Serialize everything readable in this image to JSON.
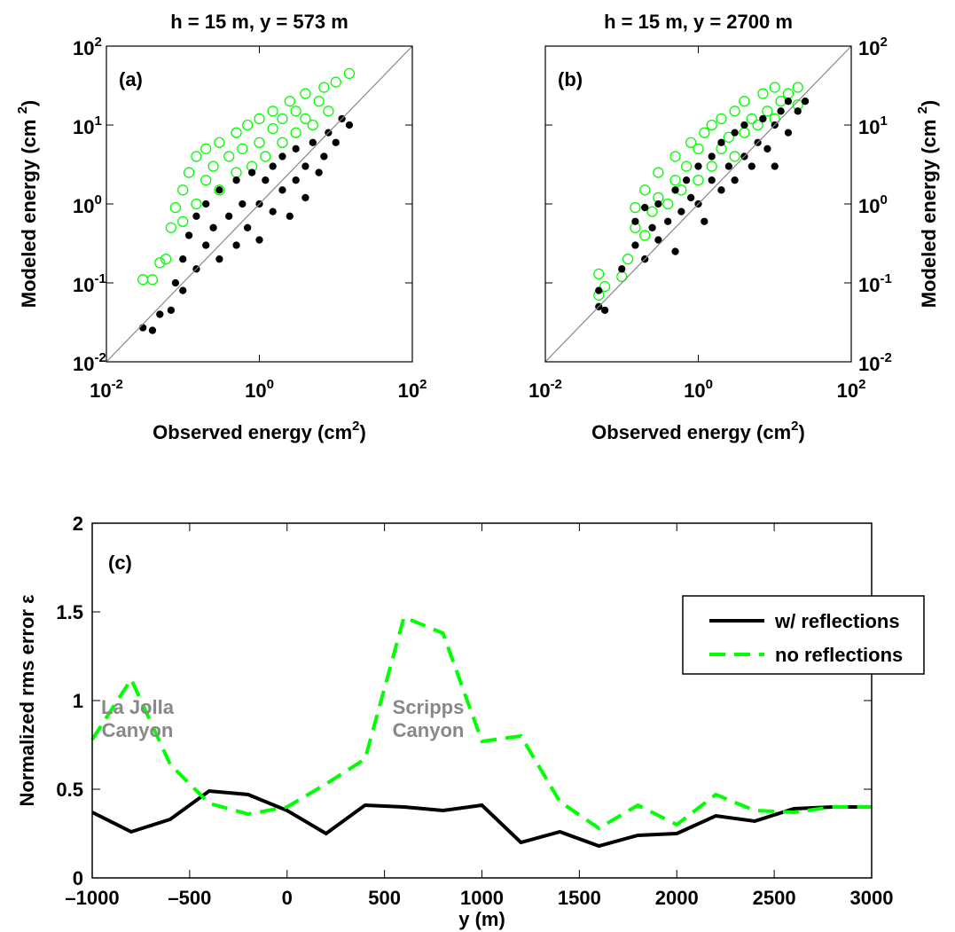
{
  "chart_data": [
    {
      "type": "scatter",
      "title": "h = 15 m, y = 573 m",
      "annotation": "(a)",
      "log_scale": true,
      "yaxis_side": "left",
      "xlabel": [
        "Observed energy (cm",
        "2",
        ")"
      ],
      "ylabel": [
        "Modeled energy (cm ",
        "2",
        ")"
      ],
      "xlim": [
        0.01,
        100
      ],
      "ylim": [
        0.01,
        100
      ],
      "xticks": [
        {
          "value": 0.01,
          "base": "10",
          "exponent": "-2"
        },
        {
          "value": 1,
          "base": "10",
          "exponent": "0"
        },
        {
          "value": 100,
          "base": "10",
          "exponent": "2"
        }
      ],
      "yticks": [
        {
          "value": 0.01,
          "base": "10",
          "exponent": "-2"
        },
        {
          "value": 0.1,
          "base": "10",
          "exponent": "-1"
        },
        {
          "value": 1,
          "base": "10",
          "exponent": "0"
        },
        {
          "value": 10,
          "base": "10",
          "exponent": "1"
        },
        {
          "value": 100,
          "base": "10",
          "exponent": "2"
        }
      ],
      "series": [
        {
          "color": "#00ff00",
          "marker": "open-circle",
          "x": [
            0.03,
            0.04,
            0.05,
            0.06,
            0.07,
            0.08,
            0.1,
            0.1,
            0.12,
            0.15,
            0.15,
            0.2,
            0.2,
            0.25,
            0.3,
            0.3,
            0.4,
            0.5,
            0.5,
            0.6,
            0.7,
            0.8,
            1,
            1,
            1.2,
            1.5,
            1.5,
            2,
            2,
            2.5,
            3,
            3,
            4,
            4,
            5,
            6,
            7,
            8,
            10,
            15
          ],
          "y": [
            0.11,
            0.11,
            0.18,
            0.2,
            0.5,
            0.9,
            0.6,
            1.5,
            2.5,
            1.0,
            4,
            2,
            5,
            3,
            1.5,
            6,
            4,
            2.5,
            8,
            5,
            10,
            3,
            6,
            12,
            4,
            9,
            15,
            6,
            12,
            20,
            8,
            15,
            12,
            25,
            10,
            20,
            30,
            15,
            35,
            45
          ]
        },
        {
          "color": "#000000",
          "marker": "dot",
          "x": [
            0.03,
            0.04,
            0.05,
            0.07,
            0.08,
            0.1,
            0.1,
            0.12,
            0.15,
            0.15,
            0.2,
            0.2,
            0.25,
            0.3,
            0.3,
            0.4,
            0.5,
            0.5,
            0.6,
            0.7,
            0.8,
            1,
            1,
            1.2,
            1.5,
            1.5,
            2,
            2,
            2.5,
            3,
            3,
            4,
            4,
            5,
            6,
            7,
            8,
            10,
            12,
            15
          ],
          "y": [
            0.027,
            0.025,
            0.04,
            0.045,
            0.1,
            0.2,
            0.08,
            0.4,
            0.15,
            0.7,
            0.3,
            1.0,
            0.5,
            0.2,
            1.5,
            0.7,
            0.3,
            2,
            1,
            0.5,
            2.5,
            1,
            0.35,
            2,
            0.8,
            3,
            1.5,
            4,
            0.7,
            2,
            5,
            3,
            1.2,
            6,
            2.5,
            4,
            8,
            6,
            12,
            10
          ]
        }
      ]
    },
    {
      "type": "scatter",
      "title": "h = 15 m, y = 2700 m",
      "annotation": "(b)",
      "log_scale": true,
      "yaxis_side": "right",
      "xlabel": [
        "Observed energy (cm",
        "2",
        ")"
      ],
      "ylabel": [
        "Modeled energy (cm ",
        "2",
        ")"
      ],
      "xlim": [
        0.01,
        100
      ],
      "ylim": [
        0.01,
        100
      ],
      "xticks": [
        {
          "value": 0.01,
          "base": "10",
          "exponent": "-2"
        },
        {
          "value": 1,
          "base": "10",
          "exponent": "0"
        },
        {
          "value": 100,
          "base": "10",
          "exponent": "2"
        }
      ],
      "yticks": [
        {
          "value": 0.01,
          "base": "10",
          "exponent": "-2"
        },
        {
          "value": 0.1,
          "base": "10",
          "exponent": "-1"
        },
        {
          "value": 1,
          "base": "10",
          "exponent": "0"
        },
        {
          "value": 10,
          "base": "10",
          "exponent": "1"
        },
        {
          "value": 100,
          "base": "10",
          "exponent": "2"
        }
      ],
      "series": [
        {
          "color": "#00ff00",
          "marker": "open-circle",
          "x": [
            0.05,
            0.05,
            0.06,
            0.1,
            0.12,
            0.15,
            0.15,
            0.2,
            0.2,
            0.25,
            0.3,
            0.3,
            0.4,
            0.5,
            0.5,
            0.6,
            0.7,
            0.8,
            1,
            1,
            1.2,
            1.5,
            1.5,
            2,
            2,
            2.5,
            3,
            3,
            4,
            4,
            5,
            6,
            7,
            8,
            10,
            10,
            12,
            15,
            20,
            20
          ],
          "y": [
            0.13,
            0.07,
            0.09,
            0.12,
            0.2,
            0.5,
            0.9,
            0.4,
            1.5,
            0.8,
            1.2,
            2.5,
            1,
            2,
            4,
            1.5,
            3,
            6,
            2,
            5,
            8,
            3,
            10,
            5,
            12,
            7,
            4,
            15,
            8,
            20,
            12,
            10,
            25,
            15,
            12,
            30,
            20,
            25,
            30,
            18
          ]
        },
        {
          "color": "#000000",
          "marker": "dot",
          "x": [
            0.05,
            0.05,
            0.06,
            0.1,
            0.15,
            0.15,
            0.2,
            0.2,
            0.25,
            0.3,
            0.3,
            0.4,
            0.5,
            0.5,
            0.6,
            0.7,
            0.8,
            1,
            1,
            1.2,
            1.5,
            1.5,
            2,
            2,
            2.5,
            3,
            3,
            4,
            4,
            5,
            6,
            7,
            8,
            10,
            10,
            12,
            15,
            15,
            20,
            25
          ],
          "y": [
            0.05,
            0.08,
            0.045,
            0.15,
            0.3,
            0.6,
            0.2,
            0.9,
            0.5,
            1,
            0.35,
            0.6,
            1.5,
            0.25,
            0.8,
            2,
            1.2,
            1,
            3,
            0.6,
            2,
            4,
            1.5,
            6,
            3,
            2,
            8,
            4,
            10,
            3,
            6,
            12,
            5,
            10,
            3,
            15,
            8,
            20,
            15,
            20
          ]
        }
      ]
    },
    {
      "type": "line",
      "annotation": "(c)",
      "notes": [
        [
          "La Jolla",
          "Canyon"
        ],
        [
          "Scripps",
          "Canyon"
        ]
      ],
      "xlabel": "y (m)",
      "ylabel": "Normalized rms error ε",
      "legend": "northeast",
      "xlim": [
        -1000,
        3000
      ],
      "ylim": [
        0,
        2
      ],
      "xticks": [
        {
          "value": -1000,
          "label": "–1000"
        },
        {
          "value": -500,
          "label": "–500"
        },
        0,
        500,
        1000,
        1500,
        2000,
        2500,
        3000
      ],
      "yticks": [
        0,
        0.5,
        1,
        1.5,
        2
      ],
      "x": [
        -1000,
        -800,
        -600,
        -400,
        -200,
        0,
        200,
        400,
        600,
        800,
        1000,
        1200,
        1400,
        1600,
        1800,
        2000,
        2200,
        2400,
        2600,
        2800,
        3000
      ],
      "series": [
        {
          "name": "w/ reflections",
          "color": "#000000",
          "dash": "solid",
          "values": [
            0.37,
            0.26,
            0.33,
            0.49,
            0.47,
            0.38,
            0.25,
            0.41,
            0.4,
            0.38,
            0.41,
            0.2,
            0.26,
            0.18,
            0.24,
            0.25,
            0.35,
            0.32,
            0.39,
            0.4,
            0.4
          ]
        },
        {
          "name": "no reflections",
          "color": "#00ff00",
          "dash": "dashed",
          "values": [
            0.78,
            1.12,
            0.64,
            0.42,
            0.36,
            0.4,
            0.53,
            0.67,
            1.47,
            1.38,
            0.77,
            0.8,
            0.43,
            0.28,
            0.41,
            0.3,
            0.47,
            0.38,
            0.37,
            0.4,
            0.4
          ]
        }
      ]
    }
  ]
}
